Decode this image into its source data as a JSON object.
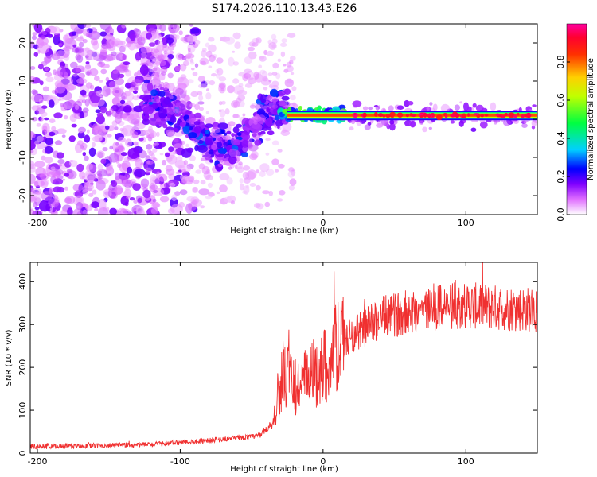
{
  "title": "S174.2026.110.13.43.E26",
  "colors": {
    "snr_line": "#f03030",
    "axis": "#000000"
  },
  "chart_data": [
    {
      "type": "heatmap",
      "name": "spectrogram",
      "xlabel": "Height of straight line (km)",
      "ylabel": "Frequency (Hz)",
      "xlim": [
        -205,
        150
      ],
      "ylim": [
        -25,
        25
      ],
      "xticks": [
        -200,
        -100,
        0,
        100
      ],
      "yticks": [
        -20,
        -10,
        0,
        10,
        20
      ],
      "xtick_labels": [
        "-200",
        "-100",
        "0",
        "100"
      ],
      "ytick_labels": [
        "-20",
        "-10",
        "0",
        "10",
        "20"
      ],
      "colorbar": {
        "label": "Normalized spectral amplitude",
        "range": [
          0,
          1
        ],
        "ticks": [
          0.0,
          0.2,
          0.4,
          0.6,
          0.8
        ],
        "tick_labels": [
          "0.0",
          "0.2",
          "0.4",
          "0.6",
          "0.8"
        ],
        "colormap": [
          "#ffffff",
          "#ff00ff",
          "#0000ff",
          "#00ffff",
          "#00ff00",
          "#ffff00",
          "#ff0000",
          "#ff00a0"
        ]
      },
      "features": {
        "noise_region_x": [
          -205,
          -120
        ],
        "scattered_region_x": [
          -120,
          -25
        ],
        "carrier_line_start_x": -25,
        "carrier_frequency_hz": 1.0
      }
    },
    {
      "type": "line",
      "name": "snr",
      "xlabel": "Height of straight line (km)",
      "ylabel": "SNR (10 * v/v)",
      "xlim": [
        -205,
        150
      ],
      "ylim": [
        0,
        445
      ],
      "xticks": [
        -200,
        -100,
        0,
        100
      ],
      "yticks": [
        0,
        100,
        200,
        300,
        400
      ],
      "xtick_labels": [
        "-200",
        "-100",
        "0",
        "100"
      ],
      "ytick_labels": [
        "0",
        "100",
        "200",
        "300",
        "400"
      ],
      "series": [
        {
          "name": "SNR",
          "x": [
            -205,
            -180,
            -150,
            -120,
            -100,
            -80,
            -60,
            -45,
            -35,
            -30,
            -25,
            -20,
            -10,
            0,
            10,
            20,
            40,
            60,
            80,
            100,
            120,
            150
          ],
          "values": [
            15,
            16,
            18,
            20,
            25,
            30,
            35,
            40,
            70,
            160,
            180,
            150,
            175,
            200,
            245,
            275,
            315,
            330,
            340,
            345,
            340,
            335
          ]
        }
      ]
    }
  ]
}
